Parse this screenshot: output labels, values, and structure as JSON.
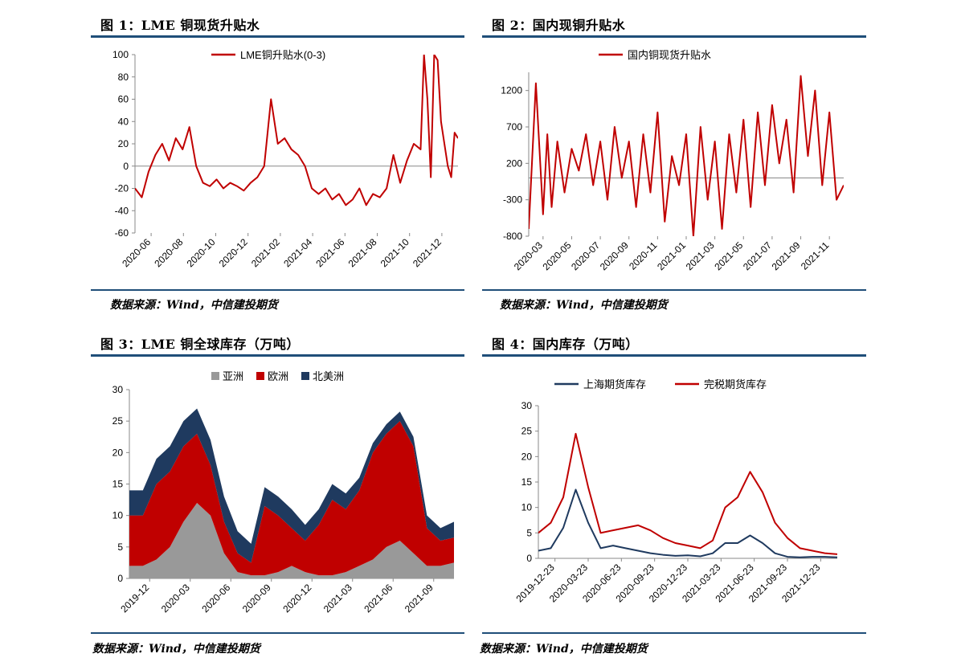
{
  "panels": {
    "p1": {
      "title": "图 1：LME 铜现货升贴水",
      "source": "数据来源：Wind，中信建投期货"
    },
    "p2": {
      "title": "图 2：国内现铜升贴水",
      "source": "数据来源：Wind，中信建投期货"
    },
    "p3": {
      "title": "图 3：LME 铜全球库存（万吨）",
      "source": "数据来源：Wind，中信建投期货"
    },
    "p4": {
      "title": "图 4：国内库存（万吨）",
      "source": "数据来源：Wind，中信建投期货"
    }
  },
  "colors": {
    "red": "#c00000",
    "navy": "#1f3a5f",
    "gray": "#999999",
    "rule": "#1f4e79"
  },
  "chart_data": [
    {
      "id": "c1",
      "type": "line",
      "legend": [
        "LME铜升贴水(0-3)"
      ],
      "xticks": [
        "2020-06",
        "2020-08",
        "2020-10",
        "2020-12",
        "2021-02",
        "2021-04",
        "2021-06",
        "2021-08",
        "2021-10",
        "2021-12"
      ],
      "ylim": [
        -60,
        100
      ],
      "yticks": [
        -60,
        -40,
        -20,
        0,
        20,
        40,
        60,
        80,
        100
      ],
      "xrange": [
        0,
        19
      ],
      "series": [
        {
          "name": "LME铜升贴水(0-3)",
          "color": "#c00000",
          "x": [
            0,
            0.4,
            0.8,
            1.2,
            1.6,
            2.0,
            2.4,
            2.8,
            3.2,
            3.6,
            4.0,
            4.4,
            4.8,
            5.2,
            5.6,
            6.0,
            6.4,
            6.8,
            7.2,
            7.6,
            8.0,
            8.4,
            8.8,
            9.2,
            9.6,
            10.0,
            10.4,
            10.8,
            11.2,
            11.6,
            12.0,
            12.4,
            12.8,
            13.2,
            13.6,
            14.0,
            14.4,
            14.8,
            15.2,
            15.6,
            16.0,
            16.4,
            16.8,
            17.0,
            17.2,
            17.4,
            17.6,
            17.8,
            18.0,
            18.2,
            18.4,
            18.6,
            18.8,
            19.0
          ],
          "y": [
            -20,
            -28,
            -5,
            10,
            20,
            5,
            25,
            15,
            35,
            0,
            -15,
            -18,
            -12,
            -20,
            -15,
            -18,
            -22,
            -15,
            -10,
            0,
            60,
            20,
            25,
            15,
            10,
            0,
            -20,
            -25,
            -20,
            -30,
            -25,
            -35,
            -30,
            -20,
            -35,
            -25,
            -28,
            -20,
            10,
            -15,
            5,
            20,
            15,
            100,
            60,
            -10,
            100,
            95,
            40,
            20,
            0,
            -10,
            30,
            25
          ]
        }
      ]
    },
    {
      "id": "c2",
      "type": "line",
      "legend": [
        "国内铜现货升贴水"
      ],
      "xticks": [
        "2020-03",
        "2020-05",
        "2020-07",
        "2020-09",
        "2020-11",
        "2021-01",
        "2021-03",
        "2021-05",
        "2021-07",
        "2021-09",
        "2021-11"
      ],
      "ylim": [
        -800,
        1450
      ],
      "yticks": [
        -800,
        -300,
        200,
        700,
        1200
      ],
      "xrange": [
        0,
        22
      ],
      "series": [
        {
          "name": "国内铜现货升贴水",
          "color": "#c00000",
          "x": [
            0,
            0.5,
            1,
            1.3,
            1.6,
            2,
            2.5,
            3,
            3.5,
            4,
            4.5,
            5,
            5.5,
            6,
            6.5,
            7,
            7.5,
            8,
            8.5,
            9,
            9.5,
            10,
            10.5,
            11,
            11.5,
            12,
            12.5,
            13,
            13.5,
            14,
            14.5,
            15,
            15.5,
            16,
            16.5,
            17,
            17.5,
            18,
            18.5,
            19,
            19.5,
            20,
            20.5,
            21,
            21.5,
            22
          ],
          "y": [
            -700,
            1300,
            -500,
            600,
            -400,
            500,
            -200,
            400,
            100,
            600,
            -100,
            500,
            -300,
            700,
            0,
            500,
            -400,
            600,
            -200,
            900,
            -600,
            300,
            -100,
            600,
            -800,
            700,
            -300,
            500,
            -700,
            600,
            -200,
            800,
            -400,
            900,
            -100,
            1000,
            200,
            800,
            -200,
            1400,
            300,
            1200,
            -100,
            900,
            -300,
            -100
          ]
        }
      ]
    },
    {
      "id": "c3",
      "type": "area",
      "legend": [
        "亚洲",
        "欧洲",
        "北美洲"
      ],
      "xticks": [
        "2019-12",
        "2020-03",
        "2020-06",
        "2020-09",
        "2020-12",
        "2021-03",
        "2021-06",
        "2021-09"
      ],
      "ylim": [
        0,
        30
      ],
      "yticks": [
        0,
        5,
        10,
        15,
        20,
        25,
        30
      ],
      "xrange": [
        0,
        24
      ],
      "x": [
        0,
        1,
        2,
        3,
        4,
        5,
        6,
        7,
        8,
        9,
        10,
        11,
        12,
        13,
        14,
        15,
        16,
        17,
        18,
        19,
        20,
        21,
        22,
        23,
        24
      ],
      "series": [
        {
          "name": "亚洲",
          "color": "#999999",
          "values": [
            2,
            2,
            3,
            5,
            9,
            12,
            10,
            4,
            1,
            0.5,
            0.5,
            1,
            2,
            1,
            0.5,
            0.5,
            1,
            2,
            3,
            5,
            6,
            4,
            2,
            2,
            2.5
          ]
        },
        {
          "name": "欧洲",
          "color": "#c00000",
          "values": [
            8,
            8,
            12,
            12,
            12,
            11,
            8,
            5,
            3,
            2,
            11,
            9,
            6,
            5,
            8,
            12,
            10,
            12,
            17,
            18,
            19,
            17,
            6,
            4,
            4
          ]
        },
        {
          "name": "北美洲",
          "color": "#1f3a5f",
          "values": [
            4,
            4,
            4,
            4,
            4,
            4,
            4,
            4,
            3.5,
            3,
            3,
            3,
            3,
            2.5,
            2.5,
            2.5,
            2.5,
            2,
            1.5,
            1.5,
            1.5,
            1.5,
            2,
            2,
            2.5
          ]
        }
      ]
    },
    {
      "id": "c4",
      "type": "line",
      "legend": [
        "上海期货库存",
        "完税期货库存"
      ],
      "xticks": [
        "2019-12-23",
        "2020-03-23",
        "2020-06-23",
        "2020-09-23",
        "2020-12-23",
        "2021-03-23",
        "2021-06-23",
        "2021-09-23",
        "2021-12-23"
      ],
      "ylim": [
        0,
        30
      ],
      "yticks": [
        0,
        5,
        10,
        15,
        20,
        25,
        30
      ],
      "xrange": [
        0,
        24
      ],
      "series": [
        {
          "name": "上海期货库存",
          "color": "#1f3a5f",
          "x": [
            0,
            1,
            2,
            3,
            4,
            5,
            6,
            7,
            8,
            9,
            10,
            11,
            12,
            13,
            14,
            15,
            16,
            17,
            18,
            19,
            20,
            21,
            22,
            23,
            24
          ],
          "y": [
            1.5,
            2,
            6,
            13.5,
            7,
            2,
            2.5,
            2,
            1.5,
            1,
            0.7,
            0.5,
            0.6,
            0.4,
            1,
            3,
            3,
            4.5,
            3,
            1,
            0.3,
            0.2,
            0.3,
            0.3,
            0.2
          ]
        },
        {
          "name": "完税期货库存",
          "color": "#c00000",
          "x": [
            0,
            1,
            2,
            3,
            4,
            5,
            6,
            7,
            8,
            9,
            10,
            11,
            12,
            13,
            14,
            15,
            16,
            17,
            18,
            19,
            20,
            21,
            22,
            23,
            24
          ],
          "y": [
            5,
            7,
            12,
            24.5,
            14,
            5,
            5.5,
            6,
            6.5,
            5.5,
            4,
            3,
            2.5,
            2,
            3.5,
            10,
            12,
            17,
            13,
            7,
            4,
            2,
            1.5,
            1,
            0.8
          ]
        }
      ]
    }
  ]
}
